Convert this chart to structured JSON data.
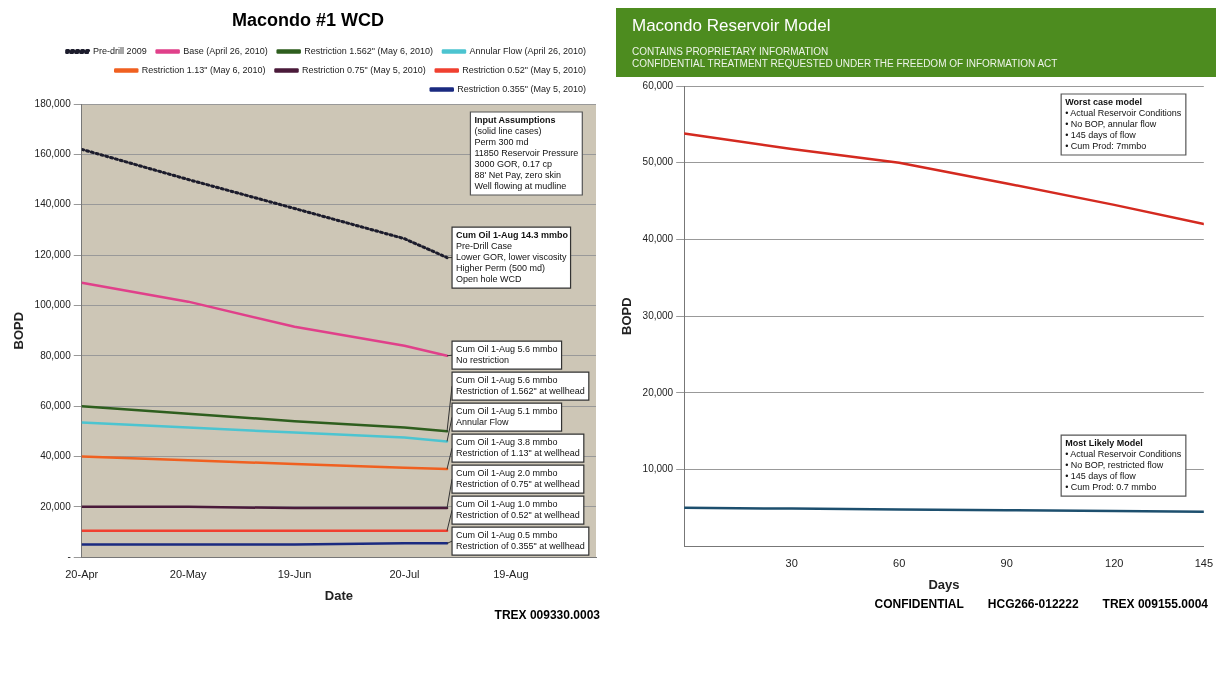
{
  "chart_data": [
    {
      "type": "line",
      "title": "Macondo #1 WCD",
      "xlabel": "Date",
      "ylabel": "BOPD",
      "x": [
        "2010-04-20",
        "2010-05-20",
        "2010-06-19",
        "2010-07-20",
        "2010-08-01"
      ],
      "series": [
        {
          "name": "Pre-drill 2009",
          "color": "#1c1c2c",
          "line_style": "dotted",
          "values": [
            162000,
            150000,
            138500,
            126500,
            119000
          ]
        },
        {
          "name": "Base (April 26, 2010)",
          "color": "#e0408a",
          "values": [
            109000,
            101500,
            91500,
            84000,
            80000
          ]
        },
        {
          "name": "Restriction 1.562\" (May 6, 2010)",
          "color": "#2e5e1e",
          "values": [
            60000,
            57000,
            54000,
            51500,
            50000
          ]
        },
        {
          "name": "Annular Flow (April 26, 2010)",
          "color": "#4cc4d0",
          "values": [
            53500,
            51500,
            49500,
            47500,
            46000
          ]
        },
        {
          "name": "Restriction 1.13\" (May 6, 2010)",
          "color": "#f06020",
          "values": [
            40000,
            38500,
            37000,
            35500,
            35000
          ]
        },
        {
          "name": "Restriction 0.75\" (May 5, 2010)",
          "color": "#4a1a3a",
          "values": [
            20000,
            20000,
            19500,
            19500,
            19500
          ]
        },
        {
          "name": "Restriction 0.52\" (May 5, 2010)",
          "color": "#f04030",
          "values": [
            10500,
            10500,
            10500,
            10500,
            10500
          ]
        },
        {
          "name": "Restriction 0.355\" (May 5, 2010)",
          "color": "#1a2a80",
          "values": [
            5000,
            5000,
            5000,
            5500,
            5500
          ]
        }
      ],
      "xlim": [
        "2010-04-20",
        "2010-09-12"
      ],
      "xticks": [
        {
          "value": "2010-04-20",
          "label": "20-Apr"
        },
        {
          "value": "2010-05-20",
          "label": "20-May"
        },
        {
          "value": "2010-06-19",
          "label": "19-Jun"
        },
        {
          "value": "2010-07-20",
          "label": "20-Jul"
        },
        {
          "value": "2010-08-19",
          "label": "19-Aug"
        }
      ],
      "ylim": [
        0,
        180000
      ],
      "yticks": [
        {
          "value": 0,
          "label": "-"
        },
        {
          "value": 20000,
          "label": "20,000"
        },
        {
          "value": 40000,
          "label": "40,000"
        },
        {
          "value": 60000,
          "label": "60,000"
        },
        {
          "value": 80000,
          "label": "80,000"
        },
        {
          "value": 100000,
          "label": "100,000"
        },
        {
          "value": 120000,
          "label": "120,000"
        },
        {
          "value": 140000,
          "label": "140,000"
        },
        {
          "value": 160000,
          "label": "160,000"
        },
        {
          "value": 180000,
          "label": "180,000"
        }
      ],
      "grid": "y",
      "legend": "top right",
      "annotations": [
        "Input Assumptions\n(solid line cases)\nPerm 300 md\n11850 Reservoir Pressure\n3000 GOR, 0.17 cp\n88' Net Pay, zero skin\nWell flowing at mudline",
        {
          "text": "Cum Oil 1-Aug 14.3 mmbo\nPre-Drill Case\nLower GOR, lower viscosity\nHigher Perm (500 md)\nOpen hole WCD",
          "x": "2010-08-01",
          "y": 119000
        },
        {
          "text": "Cum Oil 1-Aug 5.6 mmbo\nNo restriction",
          "x": "2010-08-01",
          "y": 80000
        },
        {
          "text": "Cum Oil 1-Aug 5.6 mmbo\nRestriction of 1.562\" at wellhead",
          "x": "2010-08-01",
          "y": 50000
        },
        {
          "text": "Cum Oil 1-Aug 5.1 mmbo\nAnnular Flow",
          "x": "2010-08-01",
          "y": 46000
        },
        {
          "text": "Cum Oil 1-Aug 3.8 mmbo\nRestriction of 1.13\" at wellhead",
          "x": "2010-08-01",
          "y": 35000
        },
        {
          "text": "Cum Oil 1-Aug 2.0 mmbo\nRestriction of 0.75\" at wellhead",
          "x": "2010-08-01",
          "y": 19500
        },
        {
          "text": "Cum Oil 1-Aug 1.0 mmbo\nRestriction of 0.52\" at wellhead",
          "x": "2010-08-01",
          "y": 10500
        },
        {
          "text": "Cum Oil 1-Aug 0.5 mmbo\nRestriction of 0.355\" at wellhead",
          "x": "2010-08-01",
          "y": 5500
        },
        "TREX 009330.0003"
      ]
    },
    {
      "type": "line",
      "title": "Macondo Reservoir Model",
      "subtitle": "CONTAINS PROPRIETARY INFORMATION\nCONFIDENTIAL TREATMENT REQUESTED UNDER THE FREEDOM OF INFORMATION ACT",
      "xlabel": "Days",
      "ylabel": "BOPD",
      "x": [
        0,
        30,
        60,
        90,
        120,
        145
      ],
      "series": [
        {
          "color": "#d42a20",
          "values": [
            53800,
            51800,
            50000,
            47300,
            44500,
            42000
          ]
        },
        {
          "color": "#1d4f6e",
          "values": [
            5000,
            4900,
            4800,
            4700,
            4600,
            4500
          ]
        }
      ],
      "xlim": [
        0,
        145
      ],
      "xticks": [
        30,
        60,
        90,
        120,
        145
      ],
      "ylim": [
        0,
        60000
      ],
      "yticks": [
        {
          "value": 10000,
          "label": "10,000"
        },
        {
          "value": 20000,
          "label": "20,000"
        },
        {
          "value": 30000,
          "label": "30,000"
        },
        {
          "value": 40000,
          "label": "40,000"
        },
        {
          "value": 50000,
          "label": "50,000"
        },
        {
          "value": 60000,
          "label": "60,000"
        }
      ],
      "grid": "y",
      "annotations": [
        "Worst case model\n• Actual Reservoir Conditions\n• No BOP, annular flow\n• 145 days of flow\n• Cum Prod: 7mmbo",
        "Most Likely Model\n• Actual Reservoir Conditions\n• No BOP, restricted flow\n• 145 days of flow\n• Cum Prod: 0.7 mmbo",
        "CONFIDENTIAL",
        "HCG266-012222",
        "TREX 009155.0004"
      ]
    }
  ]
}
